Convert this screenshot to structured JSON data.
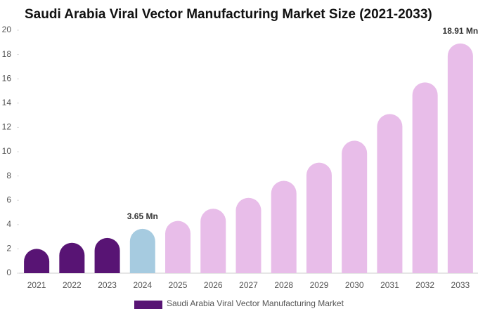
{
  "chart_data": {
    "type": "bar",
    "title": "Saudi Arabia Viral Vector Manufacturing Market Size (2021-2033)",
    "categories": [
      "2021",
      "2022",
      "2023",
      "2024",
      "2025",
      "2026",
      "2027",
      "2028",
      "2029",
      "2030",
      "2031",
      "2032",
      "2033"
    ],
    "series": [
      {
        "name": "Saudi Arabia Viral Vector Manufacturing Market",
        "color": "#581474",
        "values": [
          2.0,
          2.5,
          2.9,
          3.65,
          4.3,
          5.3,
          6.2,
          7.6,
          9.1,
          10.9,
          13.1,
          15.7,
          18.91
        ],
        "value_labels": [
          null,
          null,
          null,
          "3.65 Mn",
          null,
          null,
          null,
          null,
          null,
          null,
          null,
          null,
          "18.91 Mn"
        ],
        "colors": [
          "#581474",
          "#581474",
          "#581474",
          "#a6cbe0",
          "#e8bde9",
          "#e8bde9",
          "#e8bde9",
          "#e8bde9",
          "#e8bde9",
          "#e8bde9",
          "#e8bde9",
          "#e8bde9",
          "#e8bde9"
        ]
      }
    ],
    "ylim": [
      0,
      20
    ],
    "yticks": [
      0,
      2,
      4,
      6,
      8,
      10,
      12,
      14,
      16,
      18,
      20
    ],
    "grid": false
  }
}
